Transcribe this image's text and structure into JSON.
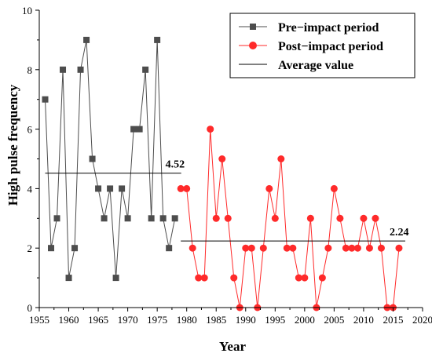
{
  "chart_data": {
    "type": "line",
    "title": "",
    "xlabel": "Year",
    "ylabel": "High pulse frequency",
    "xlim": [
      1955,
      2020
    ],
    "ylim": [
      0,
      10
    ],
    "xticks": [
      1955,
      1960,
      1965,
      1970,
      1975,
      1980,
      1985,
      1990,
      1995,
      2000,
      2005,
      2010,
      2015,
      2020
    ],
    "yticks": [
      0,
      2,
      4,
      6,
      8,
      10
    ],
    "grid": false,
    "legend": "top-right",
    "series": [
      {
        "name": "Pre−impact period",
        "marker": "square",
        "color": "#4d4d4d",
        "x": [
          1956,
          1957,
          1958,
          1959,
          1960,
          1961,
          1962,
          1963,
          1964,
          1965,
          1966,
          1967,
          1968,
          1969,
          1970,
          1971,
          1972,
          1973,
          1974,
          1975,
          1976,
          1977,
          1978
        ],
        "y": [
          7,
          2,
          3,
          8,
          1,
          2,
          8,
          9,
          5,
          4,
          3,
          4,
          1,
          4,
          3,
          6,
          6,
          8,
          3,
          9,
          3,
          2,
          3
        ]
      },
      {
        "name": "Post−impact period",
        "marker": "circle",
        "color": "#ff2a2a",
        "x": [
          1979,
          1980,
          1981,
          1982,
          1983,
          1984,
          1985,
          1986,
          1987,
          1988,
          1989,
          1990,
          1991,
          1992,
          1993,
          1994,
          1995,
          1996,
          1997,
          1998,
          1999,
          2000,
          2001,
          2002,
          2003,
          2004,
          2005,
          2006,
          2007,
          2008,
          2009,
          2010,
          2011,
          2012,
          2013,
          2014,
          2015,
          2016
        ],
        "y": [
          4,
          4,
          2,
          1,
          1,
          6,
          3,
          5,
          3,
          1,
          0,
          2,
          2,
          0,
          2,
          4,
          3,
          5,
          2,
          2,
          1,
          1,
          3,
          0,
          1,
          2,
          4,
          3,
          2,
          2,
          2,
          3,
          2,
          3,
          2,
          0,
          0,
          2
        ]
      },
      {
        "name": "Average value",
        "marker": "none",
        "color": "#000000"
      }
    ],
    "averages": [
      {
        "x_start": 1956,
        "x_end": 1978,
        "value": 4.52,
        "label": "4.52"
      },
      {
        "x_start": 1979,
        "x_end": 2016,
        "value": 2.24,
        "label": "2.24"
      }
    ]
  }
}
